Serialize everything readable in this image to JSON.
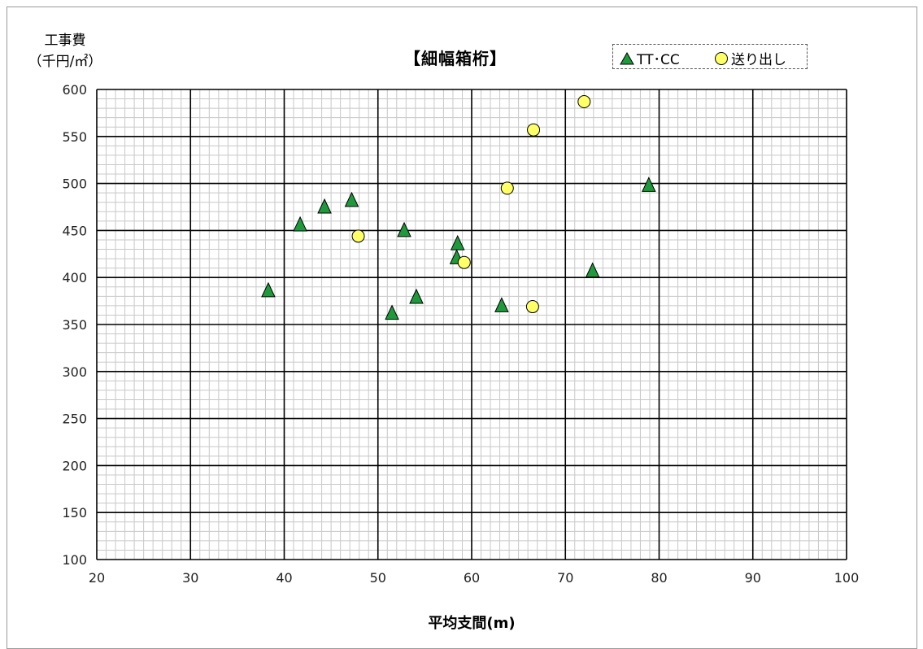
{
  "chart_data": {
    "type": "scatter",
    "title": "【細幅箱桁】",
    "ylabel_lines": [
      "工事費",
      "（千円/㎡）"
    ],
    "xlabel": "平均支間(m)",
    "xlim": [
      20,
      100
    ],
    "ylim": [
      100,
      600
    ],
    "x_ticks": [
      "20",
      "30",
      "40",
      "50",
      "60",
      "70",
      "80",
      "90",
      "100"
    ],
    "y_ticks": [
      "100",
      "150",
      "200",
      "250",
      "300",
      "350",
      "400",
      "450",
      "500",
      "550",
      "600"
    ],
    "grid": true,
    "legend_position": "top-right",
    "series": [
      {
        "name": "TT･CC",
        "marker": "triangle",
        "color": "#1e9a3c",
        "points": [
          [
            38.3,
            386
          ],
          [
            41.7,
            456
          ],
          [
            44.3,
            475
          ],
          [
            47.2,
            482
          ],
          [
            51.5,
            362
          ],
          [
            52.8,
            450
          ],
          [
            54.1,
            379
          ],
          [
            58.4,
            421
          ],
          [
            58.5,
            436
          ],
          [
            63.2,
            370
          ],
          [
            72.9,
            407
          ],
          [
            78.9,
            498
          ]
        ]
      },
      {
        "name": "送り出し",
        "marker": "circle",
        "color": "#ffff66",
        "points": [
          [
            47.9,
            444
          ],
          [
            59.2,
            416
          ],
          [
            63.8,
            495
          ],
          [
            66.5,
            369
          ],
          [
            66.6,
            557
          ],
          [
            72.0,
            587
          ]
        ]
      }
    ]
  }
}
